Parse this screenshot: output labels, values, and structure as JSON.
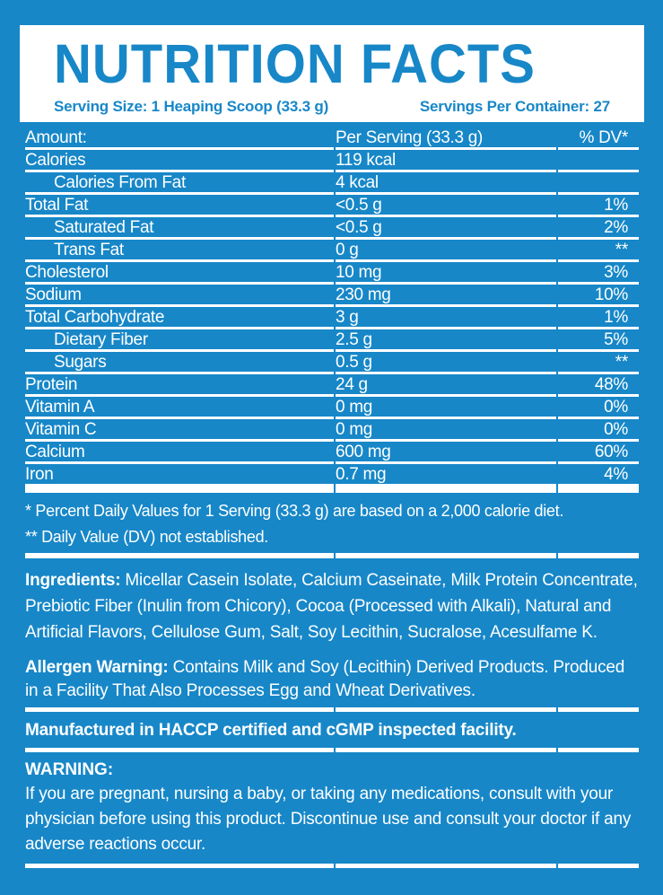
{
  "colors": {
    "background_blue": "#1787c8",
    "card_white": "#ffffff",
    "text_on_blue": "#ffffff",
    "text_on_white": "#1787c8"
  },
  "header": {
    "title": "NUTRITION FACTS",
    "serving_size": "Serving Size: 1 Heaping Scoop (33.3 g)",
    "servings_per_container": "Servings Per Container: 27"
  },
  "table": {
    "header": {
      "amount": "Amount:",
      "per_serving": "Per Serving (33.3 g)",
      "dv": "% DV*"
    },
    "rows": [
      {
        "label": "Calories",
        "value": "119 kcal",
        "dv": "",
        "indent": false
      },
      {
        "label": "Calories From Fat",
        "value": "4 kcal",
        "dv": "",
        "indent": true
      },
      {
        "label": "Total Fat",
        "value": "<0.5 g",
        "dv": "1%",
        "indent": false
      },
      {
        "label": "Saturated Fat",
        "value": "<0.5 g",
        "dv": "2%",
        "indent": true
      },
      {
        "label": "Trans Fat",
        "value": "0 g",
        "dv": "**",
        "indent": true
      },
      {
        "label": "Cholesterol",
        "value": "10 mg",
        "dv": "3%",
        "indent": false
      },
      {
        "label": "Sodium",
        "value": "230 mg",
        "dv": "10%",
        "indent": false
      },
      {
        "label": "Total Carbohydrate",
        "value": "3 g",
        "dv": "1%",
        "indent": false
      },
      {
        "label": "Dietary Fiber",
        "value": "2.5 g",
        "dv": "5%",
        "indent": true
      },
      {
        "label": "Sugars",
        "value": "0.5 g",
        "dv": "**",
        "indent": true
      },
      {
        "label": "Protein",
        "value": "24 g",
        "dv": "48%",
        "indent": false
      },
      {
        "label": "Vitamin A",
        "value": "0 mg",
        "dv": "0%",
        "indent": false
      },
      {
        "label": "Vitamin C",
        "value": "0 mg",
        "dv": "0%",
        "indent": false
      },
      {
        "label": "Calcium",
        "value": "600 mg",
        "dv": "60%",
        "indent": false
      },
      {
        "label": "Iron",
        "value": "0.7 mg",
        "dv": "4%",
        "indent": false
      }
    ]
  },
  "footnotes": {
    "daily_values": "* Percent Daily Values for 1 Serving (33.3 g) are based on a 2,000 calorie diet.",
    "dv_not_established": "** Daily Value (DV) not established."
  },
  "ingredients": {
    "label": "Ingredients:",
    "text": " Micellar Casein Isolate, Calcium Caseinate, Milk Protein Concentrate, Prebiotic Fiber (Inulin from Chicory), Cocoa (Processed with Alkali), Natural and Artificial Flavors, Cellulose Gum, Salt, Soy Lecithin, Sucralose, Acesulfame K."
  },
  "allergen": {
    "label": "Allergen Warning:",
    "text": " Contains Milk and Soy (Lecithin) Derived Products. Produced in a Facility That Also Processes Egg and Wheat Derivatives."
  },
  "manufacturing": {
    "text": "Manufactured in HACCP certified and cGMP inspected facility."
  },
  "warning": {
    "label": "WARNING:",
    "text": "If you are pregnant, nursing a baby, or taking any medications, consult with your physician before using this product. Discontinue use and consult your doctor if any adverse reactions occur."
  }
}
